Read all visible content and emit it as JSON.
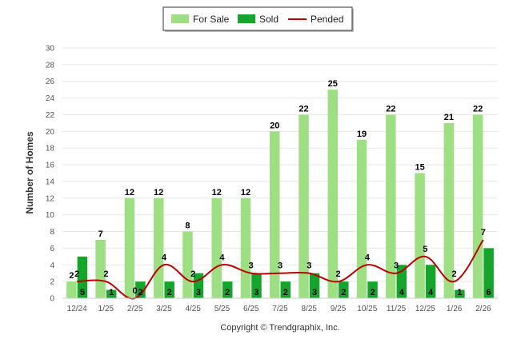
{
  "chart_data": {
    "type": "bar",
    "title": "",
    "xlabel": "",
    "ylabel": "Number of Homes",
    "ylim": [
      0,
      30
    ],
    "yticks": [
      0,
      2,
      4,
      6,
      8,
      10,
      12,
      14,
      16,
      18,
      20,
      22,
      24,
      26,
      28,
      30
    ],
    "categories": [
      "12/24",
      "1/25",
      "2/25",
      "3/25",
      "4/25",
      "5/25",
      "6/25",
      "7/25",
      "8/25",
      "9/25",
      "10/25",
      "11/25",
      "12/25",
      "1/26",
      "2/26"
    ],
    "series": [
      {
        "name": "For Sale",
        "kind": "bar",
        "color": "#9edf84",
        "values": [
          2,
          7,
          12,
          12,
          8,
          12,
          12,
          20,
          22,
          25,
          19,
          22,
          15,
          21,
          22
        ]
      },
      {
        "name": "Sold",
        "kind": "bar",
        "color": "#15a52c",
        "values": [
          5,
          1,
          2,
          2,
          3,
          2,
          3,
          2,
          3,
          2,
          2,
          4,
          4,
          1,
          6
        ]
      },
      {
        "name": "Pended",
        "kind": "line",
        "color": "#c00000",
        "values": [
          2,
          2,
          0,
          4,
          2,
          4,
          3,
          3,
          3,
          2,
          4,
          3,
          5,
          2,
          7
        ]
      }
    ],
    "legend_position": "top-center",
    "grid": true
  },
  "footer": {
    "copyright": "Copyright © Trendgraphix, Inc."
  }
}
